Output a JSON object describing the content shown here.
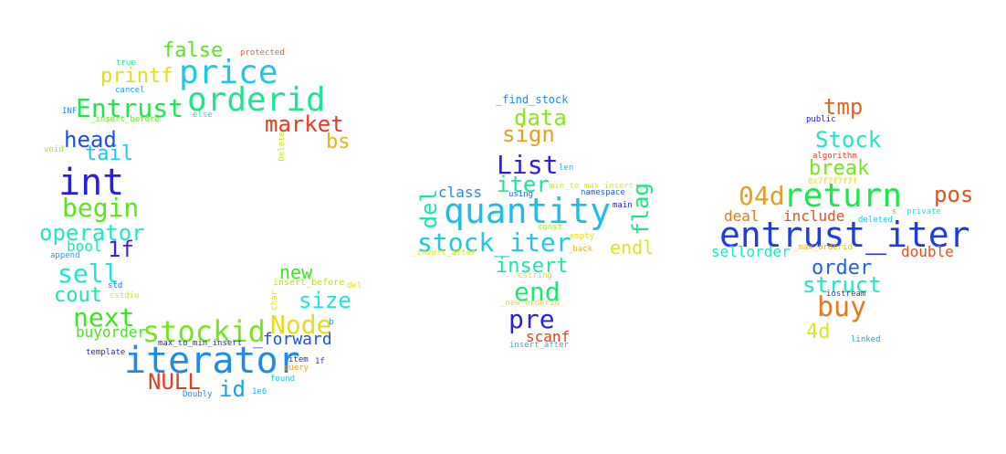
{
  "words": [
    {
      "text": "price",
      "color": "#1ec8e6"
    },
    {
      "text": "orderid",
      "color": "#1ee68c"
    },
    {
      "text": "false",
      "color": "#5ae61e"
    },
    {
      "text": "protected",
      "color": "#e6641e"
    },
    {
      "text": "printf",
      "color": "#e6dc1e"
    },
    {
      "text": "true",
      "color": "#1ee6a0"
    },
    {
      "text": "cancel",
      "color": "#1ea0e6"
    },
    {
      "text": "Entrust",
      "color": "#1ee650"
    },
    {
      "text": "market",
      "color": "#e63c1e"
    },
    {
      "text": "_insert_before",
      "color": "#64e61e"
    },
    {
      "text": "INF",
      "color": "#1e8ce6"
    },
    {
      "text": "else",
      "color": "#1ee6c8"
    },
    {
      "text": "bs",
      "color": "#e6b41e"
    },
    {
      "text": "head",
      "color": "#1e50e6"
    },
    {
      "text": "Delete",
      "color": "#c8e61e"
    },
    {
      "text": "void",
      "color": "#a0e61e"
    },
    {
      "text": "tail",
      "color": "#1ec8e6"
    },
    {
      "text": "int",
      "color": "#281ee6"
    },
    {
      "text": "begin",
      "color": "#5ae61e"
    },
    {
      "text": "operator",
      "color": "#1ee6c8"
    },
    {
      "text": "bool",
      "color": "#1ee6b4"
    },
    {
      "text": "1f",
      "color": "#3c1ee6"
    },
    {
      "text": "append",
      "color": "#1ea0e6"
    },
    {
      "text": "sell",
      "color": "#1ee6dc"
    },
    {
      "text": "new",
      "color": "#3ce61e"
    },
    {
      "text": "insert_before",
      "color": "#b4e61e"
    },
    {
      "text": "std",
      "color": "#1e78e6"
    },
    {
      "text": "del",
      "color": "#e6dc1e"
    },
    {
      "text": "cout",
      "color": "#1ee6a0"
    },
    {
      "text": "cstdio",
      "color": "#e6dc1e"
    },
    {
      "text": "size",
      "color": "#1ee6dc"
    },
    {
      "text": "char",
      "color": "#e6dc1e"
    },
    {
      "text": "next",
      "color": "#3ce61e"
    },
    {
      "text": "Node",
      "color": "#e6dc1e"
    },
    {
      "text": "b",
      "color": "#1e8ce6"
    },
    {
      "text": "buyorder",
      "color": "#46e61e"
    },
    {
      "text": "stockid",
      "color": "#78e61e"
    },
    {
      "text": "_forward",
      "color": "#1e50e6"
    },
    {
      "text": "max_to_min_insert",
      "color": "#1e28e6"
    },
    {
      "text": "template",
      "color": "#281ee6"
    },
    {
      "text": "iterator",
      "color": "#1e8ce6"
    },
    {
      "text": "item",
      "color": "#1e1ee6"
    },
    {
      "text": "1f",
      "color": "#1e3ce6"
    },
    {
      "text": "query",
      "color": "#e6a01e"
    },
    {
      "text": "NULL",
      "color": "#e63c1e"
    },
    {
      "text": "found",
      "color": "#1ec8e6"
    },
    {
      "text": "id",
      "color": "#1ea0e6"
    },
    {
      "text": "Doubly",
      "color": "#1e8ce6"
    },
    {
      "text": "1e6",
      "color": "#1eb4e6"
    },
    {
      "text": "_find_stock",
      "color": "#1e8ce6"
    },
    {
      "text": "data",
      "color": "#8ce61e"
    },
    {
      "text": "sign",
      "color": "#e6a01e"
    },
    {
      "text": "List",
      "color": "#281ee6"
    },
    {
      "text": "len",
      "color": "#1eb4e6"
    },
    {
      "text": "iter",
      "color": "#1ee68c"
    },
    {
      "text": "min_to_max_insert",
      "color": "#dce61e"
    },
    {
      "text": "del",
      "color": "#1ee6a0"
    },
    {
      "text": "class",
      "color": "#1e8ce6"
    },
    {
      "text": "using",
      "color": "#1e64e6"
    },
    {
      "text": "namespace",
      "color": "#1e64e6"
    },
    {
      "text": "flag",
      "color": "#1ee678"
    },
    {
      "text": "main",
      "color": "#1e28e6"
    },
    {
      "text": "quantity",
      "color": "#1ebee6"
    },
    {
      "text": "const",
      "color": "#a0e61e"
    },
    {
      "text": "stock_iter",
      "color": "#1ec8e6"
    },
    {
      "text": "empty",
      "color": "#e6dc1e"
    },
    {
      "text": "endl",
      "color": "#dce61e"
    },
    {
      "text": "_insert_after",
      "color": "#dce61e"
    },
    {
      "text": "_back",
      "color": "#e6b41e"
    },
    {
      "text": "insert",
      "color": "#1ee6a0"
    },
    {
      "text": "cstring",
      "color": "#e6dc1e"
    },
    {
      "text": "end",
      "color": "#1ee678"
    },
    {
      "text": "_new_orderid",
      "color": "#e6dc1e"
    },
    {
      "text": "pre",
      "color": "#281ee6"
    },
    {
      "text": "scanf",
      "color": "#e63c1e"
    },
    {
      "text": "insert_after",
      "color": "#1eb4e6"
    },
    {
      "text": "tmp",
      "color": "#e6641e"
    },
    {
      "text": "public",
      "color": "#1e1ee6"
    },
    {
      "text": "Stock",
      "color": "#1ee6c8"
    },
    {
      "text": "algorithm",
      "color": "#e63c1e"
    },
    {
      "text": "break",
      "color": "#78e61e"
    },
    {
      "text": "0x7f7f7f7f",
      "color": "#e6dc1e"
    },
    {
      "text": "04d",
      "color": "#e6a01e"
    },
    {
      "text": "return",
      "color": "#1ee650"
    },
    {
      "text": "pos",
      "color": "#e6501e"
    },
    {
      "text": "deal",
      "color": "#e6781e"
    },
    {
      "text": "include",
      "color": "#e6501e"
    },
    {
      "text": "deleted",
      "color": "#1ec8e6"
    },
    {
      "text": "s",
      "color": "#e6a01e"
    },
    {
      "text": "private",
      "color": "#1ee6c8"
    },
    {
      "text": "entrust_iter",
      "color": "#1e3ce6"
    },
    {
      "text": "sellorder",
      "color": "#1ee6c8"
    },
    {
      "text": "_max_orderid",
      "color": "#e6b41e"
    },
    {
      "text": "double",
      "color": "#e6501e"
    },
    {
      "text": "order",
      "color": "#1e64e6"
    },
    {
      "text": "struct",
      "color": "#1ee6c8"
    },
    {
      "text": "iostream",
      "color": "#1e3ce6"
    },
    {
      "text": "buy",
      "color": "#e6781e"
    },
    {
      "text": "4d",
      "color": "#dce61e"
    },
    {
      "text": "linked",
      "color": "#1ea0e6"
    }
  ]
}
